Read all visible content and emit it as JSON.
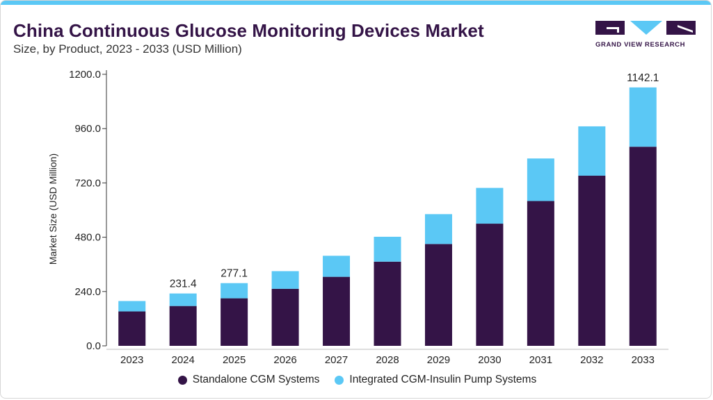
{
  "header": {
    "title": "China Continuous Glucose Monitoring Devices Market",
    "subtitle": "Size, by Product, 2023 - 2033 (USD Million)"
  },
  "logo": {
    "text": "GRAND VIEW RESEARCH",
    "color": "#341447",
    "accent": "#5bc8f5"
  },
  "chart_data": {
    "type": "bar",
    "stacked": true,
    "categories": [
      "2023",
      "2024",
      "2025",
      "2026",
      "2027",
      "2028",
      "2029",
      "2030",
      "2031",
      "2032",
      "2033"
    ],
    "series": [
      {
        "name": "Standalone CGM Systems",
        "color": "#341447",
        "values": [
          152,
          176,
          210,
          252,
          305,
          372,
          450,
          540,
          640,
          752,
          880
        ]
      },
      {
        "name": "Integrated CGM-Insulin Pump Systems",
        "color": "#5bc8f5",
        "values": [
          46,
          55.4,
          67.1,
          78,
          93,
          110,
          132,
          158,
          188,
          218,
          262.1
        ]
      }
    ],
    "data_labels": [
      {
        "category": "2024",
        "text": "231.4"
      },
      {
        "category": "2025",
        "text": "277.1"
      },
      {
        "category": "2033",
        "text": "1142.1"
      }
    ],
    "title": "China Continuous Glucose Monitoring Devices Market",
    "subtitle": "Size, by Product, 2023 - 2033 (USD Million)",
    "xlabel": "",
    "ylabel": "Market Size (USD Million)",
    "ylim": [
      0,
      1200
    ],
    "yticks": [
      0,
      240,
      480,
      720,
      960,
      1200
    ],
    "ytick_labels": [
      "0.0",
      "240.0",
      "480.0",
      "720.0",
      "960.0",
      "1200.0"
    ],
    "grid": false,
    "legend": "bottom-center"
  }
}
